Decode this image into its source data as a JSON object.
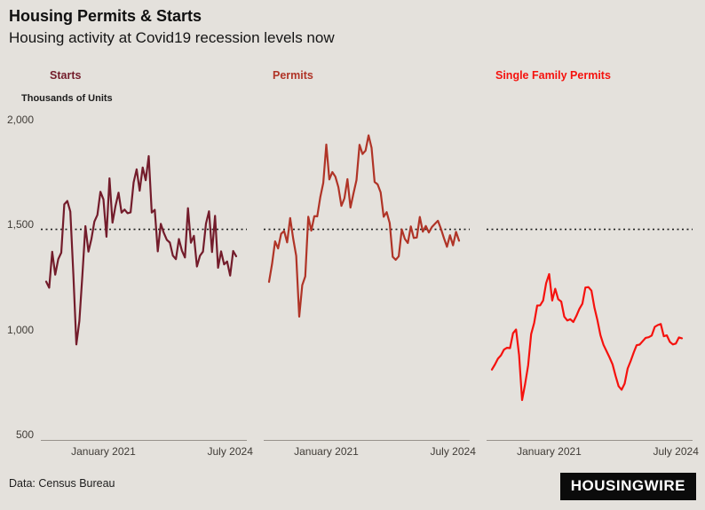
{
  "page": {
    "title": "Housing Permits & Starts",
    "subtitle": "Housing activity at Covid19 recession levels now",
    "source": "Data: Census Bureau",
    "logo": "HOUSINGWIRE",
    "background": "#e4e1dc"
  },
  "axis": {
    "unit_label": "Thousands of Units",
    "y_ticks": [
      {
        "label": "2,000",
        "value": 2000
      },
      {
        "label": "1,500",
        "value": 1500
      },
      {
        "label": "1,000",
        "value": 1000
      },
      {
        "label": "500",
        "value": 500
      }
    ],
    "x_tick_labels": [
      "January 2021",
      "July 2024"
    ]
  },
  "chart_data": {
    "type": "line",
    "title": "Housing Permits & Starts",
    "subtitle": "Housing activity at Covid19 recession levels now",
    "ylabel": "Thousands of Units",
    "ylim": [
      500,
      2000
    ],
    "frequency": "monthly",
    "x_start_month": "2019-06",
    "x_end_month": "2024-09",
    "grid": false,
    "legend": "panel-titles",
    "reference_line": 1482,
    "x_ticks": [
      {
        "label": "January 2021",
        "index": 19
      },
      {
        "label": "July 2024",
        "index": 61
      }
    ],
    "panels": [
      {
        "name": "Starts",
        "color": "#731c2b",
        "values": [
          1233,
          1204,
          1375,
          1266,
          1340,
          1371,
          1601,
          1617,
          1567,
          1269,
          934,
          1046,
          1265,
          1497,
          1376,
          1437,
          1519,
          1551,
          1661,
          1625,
          1447,
          1725,
          1514,
          1594,
          1657,
          1562,
          1576,
          1559,
          1563,
          1706,
          1768,
          1666,
          1777,
          1716,
          1831,
          1562,
          1575,
          1377,
          1508,
          1465,
          1432,
          1419,
          1357,
          1340,
          1436,
          1380,
          1348,
          1583,
          1418,
          1451,
          1305,
          1356,
          1376,
          1510,
          1568,
          1374,
          1546,
          1299,
          1377,
          1315,
          1329,
          1262,
          1379,
          1354
        ]
      },
      {
        "name": "Permits",
        "color": "#b03427",
        "values": [
          1232,
          1317,
          1425,
          1391,
          1461,
          1474,
          1420,
          1536,
          1438,
          1356,
          1066,
          1216,
          1258,
          1542,
          1476,
          1545,
          1544,
          1635,
          1704,
          1886,
          1720,
          1755,
          1733,
          1683,
          1594,
          1630,
          1721,
          1586,
          1653,
          1717,
          1885,
          1841,
          1857,
          1930,
          1870,
          1708,
          1696,
          1658,
          1542,
          1564,
          1512,
          1351,
          1337,
          1354,
          1482,
          1437,
          1417,
          1496,
          1441,
          1443,
          1541,
          1471,
          1498,
          1467,
          1493,
          1508,
          1523,
          1485,
          1440,
          1399,
          1454,
          1406,
          1470,
          1428
        ]
      },
      {
        "name": "Single Family Permits",
        "color": "#f5120e",
        "values": [
          814,
          838,
          866,
          882,
          909,
          918,
          916,
          987,
          1005,
          884,
          669,
          745,
          834,
          983,
          1036,
          1119,
          1120,
          1143,
          1226,
          1269,
          1143,
          1199,
          1149,
          1138,
          1066,
          1048,
          1054,
          1041,
          1069,
          1103,
          1128,
          1205,
          1207,
          1190,
          1109,
          1048,
          977,
          932,
          902,
          872,
          839,
          784,
          735,
          718,
          747,
          819,
          855,
          895,
          930,
          933,
          949,
          965,
          968,
          976,
          1017,
          1026,
          1031,
          973,
          977,
          946,
          934,
          938,
          967,
          963
        ]
      }
    ]
  }
}
